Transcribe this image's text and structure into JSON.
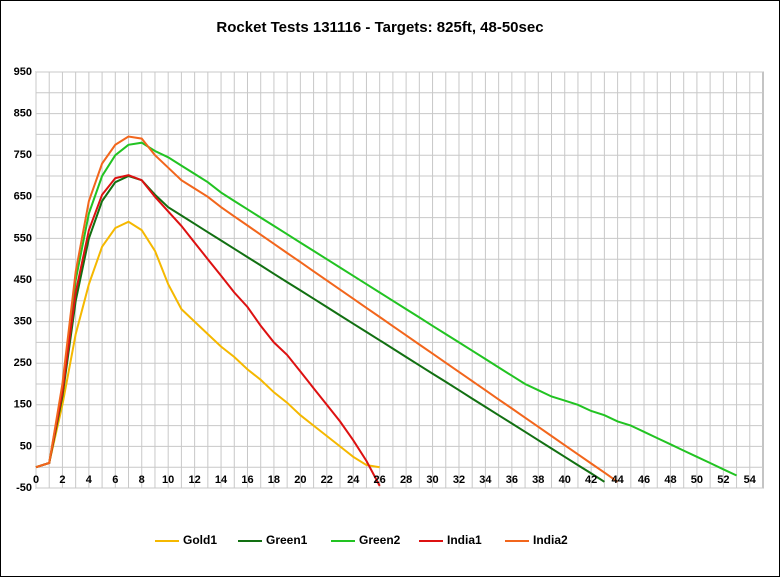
{
  "chart_data": {
    "type": "line",
    "title": "Rocket Tests 131116 - Targets: 825ft, 48-50sec",
    "x": [
      0,
      1,
      2,
      3,
      4,
      5,
      6,
      7,
      8,
      9,
      10,
      11,
      12,
      13,
      14,
      15,
      16,
      17,
      18,
      19,
      20,
      21,
      22,
      23,
      24,
      25,
      26,
      27,
      28,
      29,
      30,
      31,
      32,
      33,
      34,
      35,
      36,
      37,
      38,
      39,
      40,
      41,
      42,
      43,
      44,
      45,
      46,
      47,
      48,
      49,
      50,
      51,
      52,
      53
    ],
    "series": [
      {
        "name": "Gold1",
        "color": "#f5b800",
        "values": [
          0,
          10,
          150,
          320,
          440,
          530,
          575,
          590,
          570,
          520,
          440,
          380,
          350,
          320,
          290,
          265,
          235,
          210,
          180,
          155,
          125,
          100,
          75,
          50,
          25,
          5,
          0,
          null,
          null,
          null,
          null,
          null,
          null,
          null,
          null,
          null,
          null,
          null,
          null,
          null,
          null,
          null,
          null,
          null,
          null,
          null,
          null,
          null,
          null,
          null,
          null,
          null,
          null,
          null
        ]
      },
      {
        "name": "Green1",
        "color": "#127012",
        "values": [
          0,
          10,
          170,
          400,
          550,
          640,
          685,
          700,
          690,
          655,
          625,
          605,
          585,
          565,
          545,
          525,
          505,
          485,
          465,
          445,
          425,
          405,
          385,
          365,
          345,
          325,
          305,
          285,
          265,
          245,
          225,
          205,
          185,
          165,
          145,
          125,
          105,
          85,
          65,
          45,
          25,
          5,
          -15,
          -35,
          null,
          null,
          null,
          null,
          null,
          null,
          null,
          null,
          null,
          null
        ]
      },
      {
        "name": "Green2",
        "color": "#22c322",
        "values": [
          0,
          10,
          190,
          450,
          610,
          700,
          750,
          775,
          780,
          760,
          745,
          725,
          705,
          685,
          660,
          640,
          620,
          600,
          580,
          560,
          540,
          520,
          500,
          480,
          460,
          440,
          420,
          400,
          380,
          360,
          340,
          320,
          300,
          280,
          260,
          240,
          220,
          200,
          185,
          170,
          160,
          150,
          135,
          125,
          110,
          100,
          85,
          70,
          55,
          40,
          25,
          10,
          -5,
          -20
        ]
      },
      {
        "name": "India1",
        "color": "#dd1111",
        "values": [
          0,
          10,
          180,
          420,
          570,
          655,
          695,
          702,
          690,
          650,
          615,
          580,
          540,
          500,
          460,
          420,
          385,
          340,
          300,
          270,
          230,
          190,
          150,
          110,
          65,
          15,
          -45,
          null,
          null,
          null,
          null,
          null,
          null,
          null,
          null,
          null,
          null,
          null,
          null,
          null,
          null,
          null,
          null,
          null,
          null,
          null,
          null,
          null,
          null,
          null,
          null,
          null,
          null,
          null
        ]
      },
      {
        "name": "India2",
        "color": "#f2661c",
        "values": [
          0,
          10,
          200,
          470,
          640,
          730,
          775,
          795,
          790,
          750,
          720,
          690,
          670,
          650,
          625,
          603,
          581,
          559,
          537,
          515,
          493,
          471,
          449,
          427,
          405,
          383,
          361,
          339,
          317,
          295,
          273,
          251,
          229,
          207,
          185,
          163,
          141,
          119,
          97,
          75,
          53,
          31,
          9,
          -13,
          -35,
          null,
          null,
          null,
          null,
          null,
          null,
          null,
          null,
          null
        ]
      }
    ],
    "xlim": [
      0,
      55
    ],
    "xticks": [
      0,
      2,
      4,
      6,
      8,
      10,
      12,
      14,
      16,
      18,
      20,
      22,
      24,
      26,
      28,
      30,
      32,
      34,
      36,
      38,
      40,
      42,
      44,
      46,
      48,
      50,
      52,
      54
    ],
    "ylim": [
      -50,
      950
    ],
    "yticks": [
      -50,
      50,
      150,
      250,
      350,
      450,
      550,
      650,
      750,
      850,
      950
    ],
    "grid": true,
    "minor_grid": true,
    "legend": "bottom"
  }
}
